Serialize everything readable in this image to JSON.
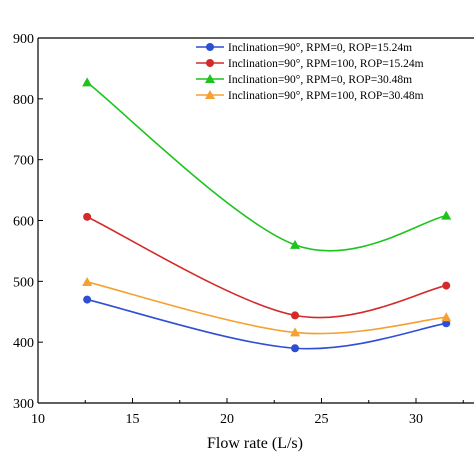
{
  "chart_data": {
    "type": "line",
    "title": "",
    "xlabel": "Flow rate (L/s)",
    "ylabel": "",
    "xlim": [
      10,
      35
    ],
    "ylim": [
      300,
      900
    ],
    "x_ticks": [
      10,
      15,
      20,
      25,
      30
    ],
    "y_ticks": [
      300,
      400,
      500,
      600,
      700,
      800,
      900
    ],
    "grid": false,
    "legend_position": "top-right",
    "series": [
      {
        "name": "Inclination=90°,  RPM=0,      ROP=15.24m",
        "color": "#2e4fd4",
        "marker": "circle",
        "x": [
          12.6,
          23.6,
          31.6
        ],
        "y": [
          470,
          390,
          431
        ]
      },
      {
        "name": "Inclination=90°,  RPM=100,  ROP=15.24m",
        "color": "#d42a2a",
        "marker": "circle",
        "x": [
          12.6,
          23.6,
          31.6
        ],
        "y": [
          606,
          444,
          493
        ]
      },
      {
        "name": "Inclination=90°,  RPM=0,      ROP=30.48m",
        "color": "#1cc41c",
        "marker": "triangle",
        "x": [
          12.6,
          23.6,
          31.6
        ],
        "y": [
          827,
          560,
          608
        ]
      },
      {
        "name": "Inclination=90°,  RPM=100,  ROP=30.48m",
        "color": "#f5a030",
        "marker": "triangle",
        "x": [
          12.6,
          23.6,
          31.6
        ],
        "y": [
          499,
          416,
          441
        ]
      }
    ]
  }
}
